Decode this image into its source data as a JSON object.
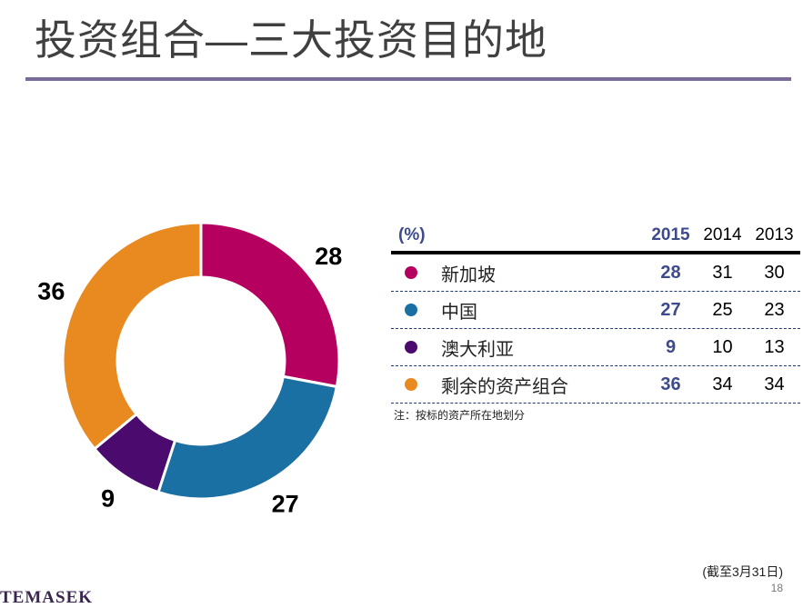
{
  "title": "投资组合—三大投资目的地",
  "chart_data": {
    "type": "pie",
    "donut": true,
    "categories": [
      "新加坡",
      "中国",
      "澳大利亚",
      "剩余的资产组合"
    ],
    "values": [
      28,
      27,
      9,
      36
    ],
    "colors": [
      "#b5005f",
      "#1a6fa3",
      "#4b0a6e",
      "#e98a21"
    ]
  },
  "table": {
    "unit": "(%)",
    "columns": [
      "2015",
      "2014",
      "2013"
    ],
    "rows": [
      {
        "label": "新加坡",
        "color": "#b5005f",
        "values": [
          "28",
          "31",
          "30"
        ]
      },
      {
        "label": "中国",
        "color": "#1a6fa3",
        "values": [
          "27",
          "25",
          "23"
        ]
      },
      {
        "label": "澳大利亚",
        "color": "#4b0a6e",
        "values": [
          "9",
          "10",
          "13"
        ]
      },
      {
        "label": "剩余的资产组合",
        "color": "#e98a21",
        "values": [
          "36",
          "34",
          "34"
        ]
      }
    ],
    "note": "注：按标的资产所在地划分"
  },
  "footer": {
    "as_of": "(截至3月31日)",
    "page": "18",
    "logo": "TEMASEK"
  }
}
